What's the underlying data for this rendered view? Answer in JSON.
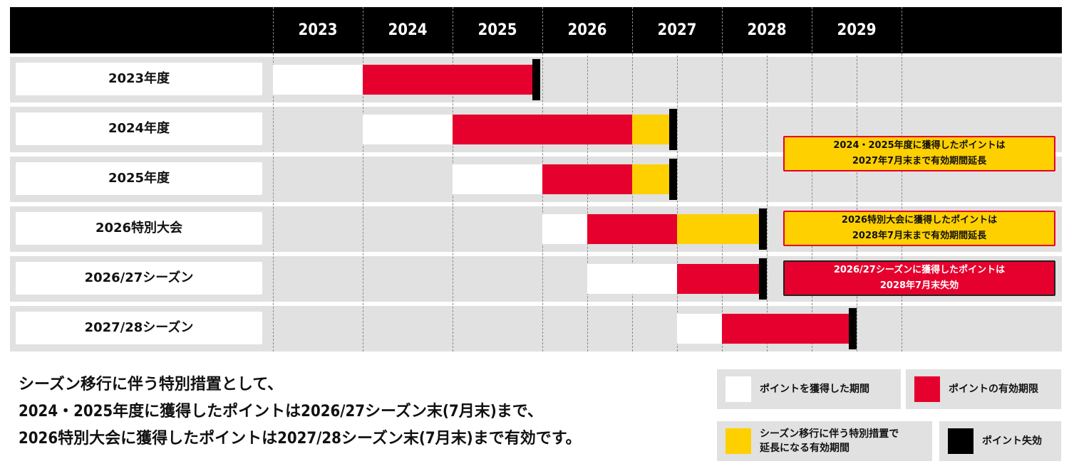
{
  "chart_data": {
    "type": "gantt",
    "years": [
      "2023",
      "2024",
      "2025",
      "2026",
      "2027",
      "2028",
      "2029"
    ],
    "rows": [
      {
        "label": "2023年度",
        "segments": [
          {
            "kind": "earned",
            "start": 2023.0,
            "end": 2024.0
          },
          {
            "kind": "valid",
            "start": 2024.0,
            "end": 2025.9
          },
          {
            "kind": "expiry",
            "at": 2025.9
          }
        ]
      },
      {
        "label": "2024年度",
        "segments": [
          {
            "kind": "earned",
            "start": 2024.0,
            "end": 2025.0
          },
          {
            "kind": "valid",
            "start": 2025.0,
            "end": 2027.0
          },
          {
            "kind": "extended",
            "start": 2027.0,
            "end": 2027.42
          },
          {
            "kind": "expiry",
            "at": 2027.42
          }
        ]
      },
      {
        "label": "2025年度",
        "segments": [
          {
            "kind": "earned",
            "start": 2025.0,
            "end": 2026.0
          },
          {
            "kind": "valid",
            "start": 2026.0,
            "end": 2027.0
          },
          {
            "kind": "extended",
            "start": 2027.0,
            "end": 2027.42
          },
          {
            "kind": "expiry",
            "at": 2027.42
          }
        ]
      },
      {
        "label": "2026特別大会",
        "segments": [
          {
            "kind": "earned",
            "start": 2026.0,
            "end": 2026.5
          },
          {
            "kind": "valid",
            "start": 2026.5,
            "end": 2027.5
          },
          {
            "kind": "extended",
            "start": 2027.5,
            "end": 2028.42
          },
          {
            "kind": "expiry",
            "at": 2028.42
          }
        ]
      },
      {
        "label": "2026/27シーズン",
        "segments": [
          {
            "kind": "earned",
            "start": 2026.5,
            "end": 2027.5
          },
          {
            "kind": "valid",
            "start": 2027.5,
            "end": 2028.42
          },
          {
            "kind": "expiry",
            "at": 2028.42
          }
        ]
      },
      {
        "label": "2027/28シーズン",
        "segments": [
          {
            "kind": "earned",
            "start": 2027.5,
            "end": 2028.0
          },
          {
            "kind": "valid",
            "start": 2028.0,
            "end": 2029.42
          },
          {
            "kind": "expiry",
            "at": 2029.42
          }
        ]
      }
    ],
    "callouts": [
      {
        "row": 1,
        "style": "yellow",
        "lines": [
          "2024・2025年度に獲得したポイントは",
          "2027年7月末まで有効期間延長"
        ]
      },
      {
        "row": 3,
        "style": "yellow",
        "lines": [
          "2026特別大会に獲得したポイントは",
          "2028年7月末まで有効期間延長"
        ]
      },
      {
        "row": 4,
        "style": "red",
        "lines": [
          "2026/27シーズンに獲得したポイントは",
          "2028年7月末失効"
        ]
      }
    ]
  },
  "note": {
    "lines": [
      "シーズン移行に伴う特別措置として、",
      "2024・2025年度に獲得したポイントは2026/27シーズン末(7月末)まで、",
      "2026特別大会に獲得したポイントは2027/28シーズン末(7月末)まで有効です。"
    ]
  },
  "legend": {
    "earned": "ポイントを獲得した期間",
    "valid": "ポイントの有効期限",
    "extended_line1": "シーズン移行に伴う特別措置で",
    "extended_line2": "延長になる有効期間",
    "expiry": "ポイント失効"
  },
  "colors": {
    "earned": "#ffffff",
    "valid": "#e6002d",
    "extended": "#ffd000",
    "expiry": "#000000",
    "row_bg": "#e1e1e1",
    "header_bg": "#000000"
  }
}
